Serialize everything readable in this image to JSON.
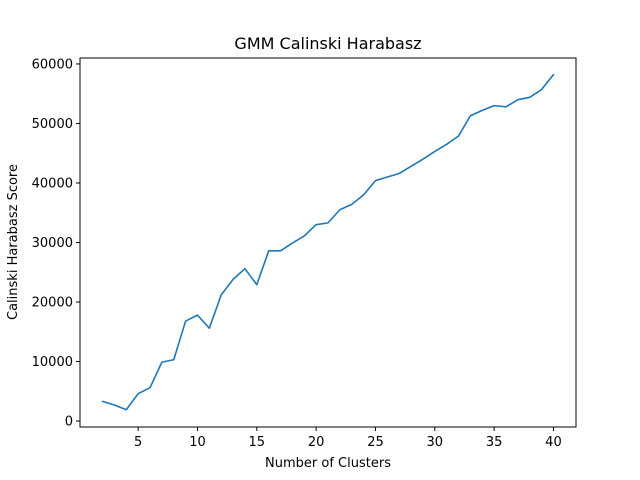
{
  "chart_data": {
    "type": "line",
    "title": "GMM Calinski Harabasz",
    "xlabel": "Number of Clusters",
    "ylabel": "Calinski Harabasz Score",
    "xlim": [
      0.1,
      41.9
    ],
    "ylim": [
      -1000,
      61000
    ],
    "x_ticks": [
      5,
      10,
      15,
      20,
      25,
      30,
      35,
      40
    ],
    "y_ticks": [
      0,
      10000,
      20000,
      30000,
      40000,
      50000,
      60000
    ],
    "x_tick_labels": [
      "5",
      "10",
      "15",
      "20",
      "25",
      "30",
      "35",
      "40"
    ],
    "y_tick_labels": [
      "0",
      "10000",
      "20000",
      "30000",
      "40000",
      "50000",
      "60000"
    ],
    "grid": false,
    "color": "#1f77b4",
    "series": [
      {
        "x": [
          2,
          3,
          4,
          5,
          6,
          7,
          8,
          9,
          10,
          11,
          12,
          13,
          14,
          15,
          16,
          17,
          18,
          19,
          20,
          21,
          22,
          23,
          24,
          25,
          26,
          27,
          28,
          29,
          30,
          31,
          32,
          33,
          34,
          35,
          36,
          37,
          38,
          39,
          40
        ],
        "values": [
          3300,
          2700,
          1900,
          4600,
          5600,
          9900,
          10300,
          16800,
          17800,
          15600,
          21200,
          23800,
          25600,
          22900,
          28600,
          28600,
          29900,
          31100,
          33000,
          33300,
          35500,
          36400,
          38000,
          40400,
          41000,
          41600,
          42800,
          44000,
          45300,
          46500,
          47900,
          51300,
          52200,
          53000,
          52800,
          54000,
          54400,
          55700,
          58200
        ]
      }
    ]
  }
}
